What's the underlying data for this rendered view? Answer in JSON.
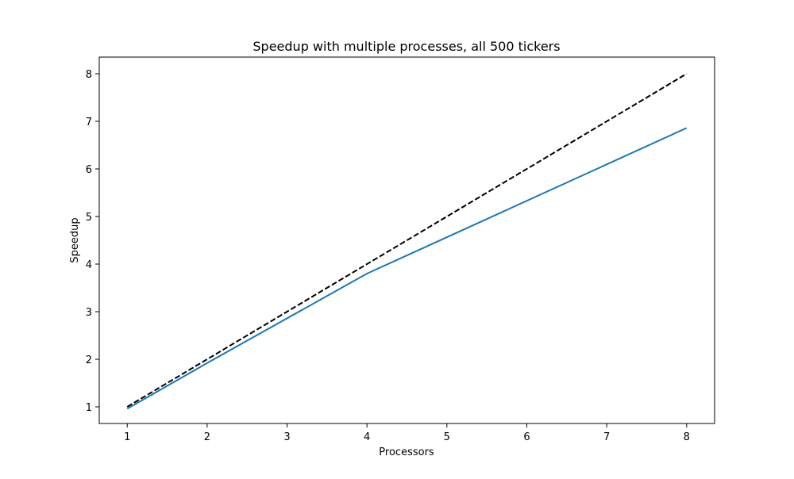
{
  "chart_data": {
    "type": "line",
    "title": "Speedup with multiple processes, all 500 tickers",
    "xlabel": "Processors",
    "ylabel": "Speedup",
    "xlim": [
      0.65,
      8.35
    ],
    "ylim": [
      0.65,
      8.35
    ],
    "xticks": [
      "1",
      "2",
      "3",
      "4",
      "5",
      "6",
      "7",
      "8"
    ],
    "yticks": [
      "1",
      "2",
      "3",
      "4",
      "5",
      "6",
      "7",
      "8"
    ],
    "grid": false,
    "legend": "none",
    "series": [
      {
        "x": [
          1,
          2,
          4,
          8
        ],
        "y": [
          0.96,
          1.92,
          3.8,
          6.86
        ],
        "color": "#1f77b4",
        "style": "solid"
      },
      {
        "x": [
          1,
          8
        ],
        "y": [
          1,
          8
        ],
        "color": "#000000",
        "style": "dashed"
      }
    ]
  }
}
